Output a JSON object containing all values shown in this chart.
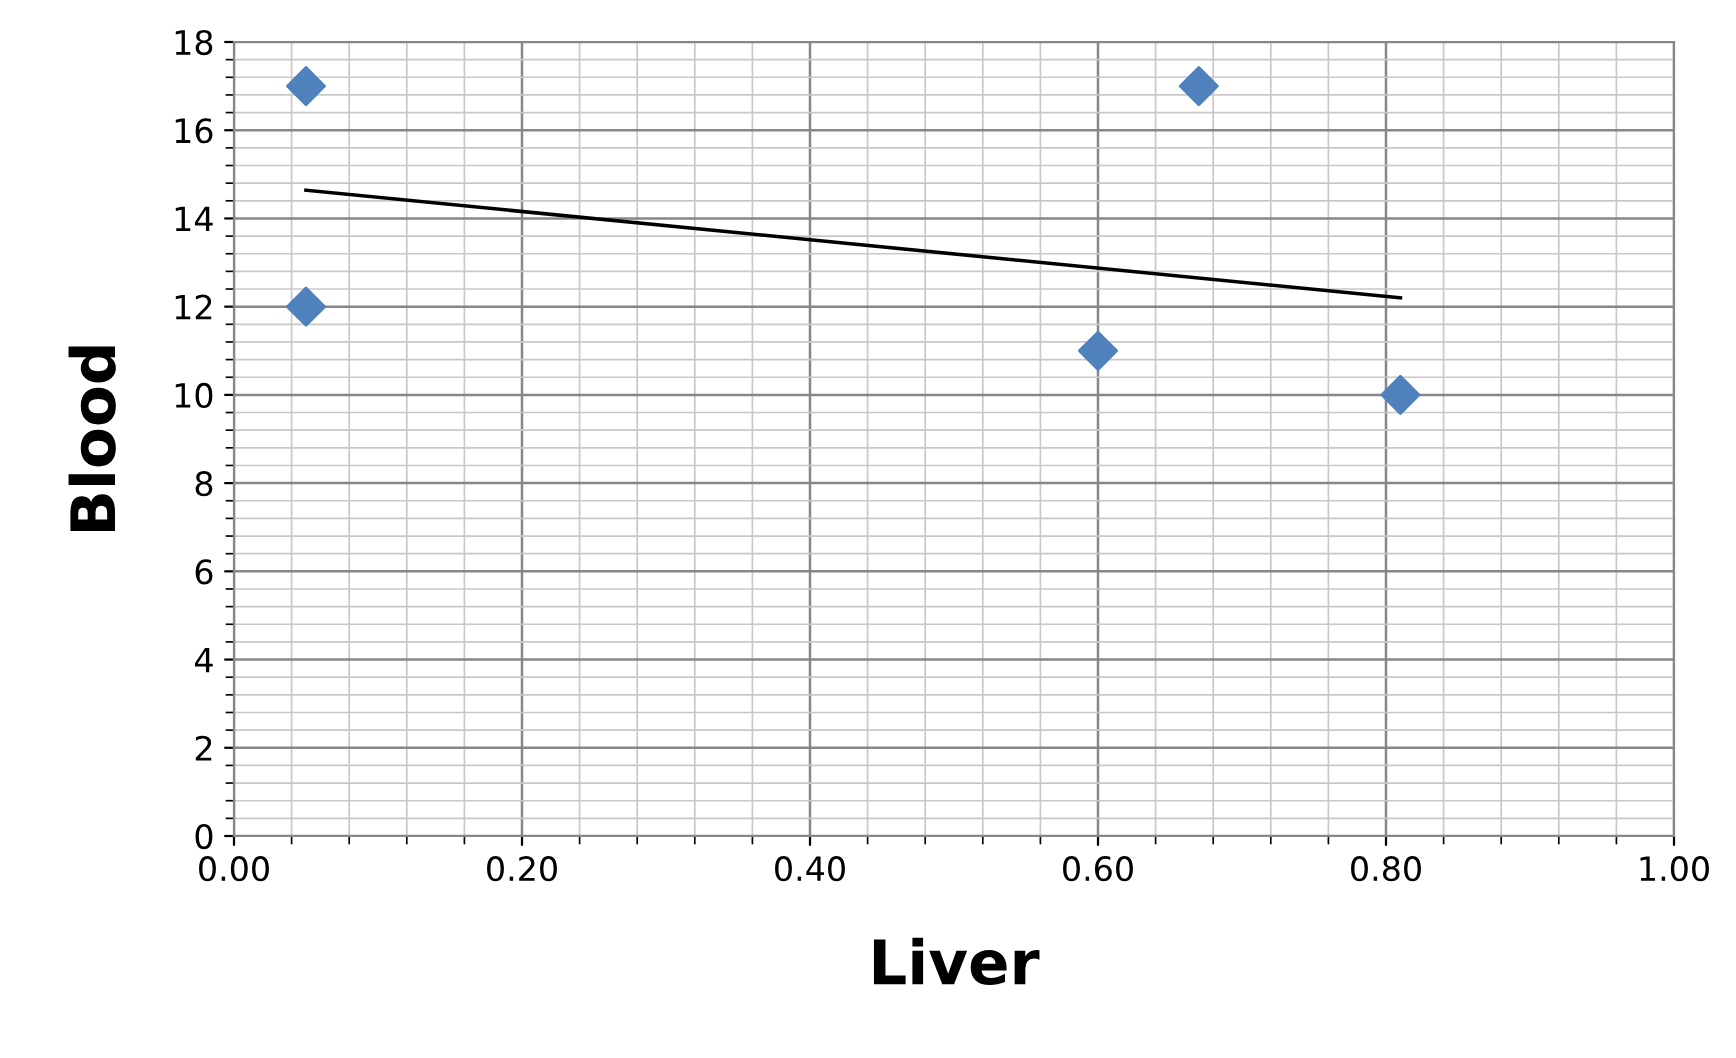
{
  "chart_data": {
    "type": "scatter",
    "xlabel": "Liver",
    "ylabel": "Blood",
    "series": [
      {
        "color": "#4f81bd",
        "marker": "diamond",
        "x": [
          0.05,
          0.05,
          0.6,
          0.67,
          0.81
        ],
        "values": [
          17,
          12,
          11,
          17,
          10
        ]
      },
      {
        "type": "line",
        "color": "#000000",
        "marker": "none",
        "line_style": "solid",
        "x": [
          0.05,
          0.81
        ],
        "values": [
          14.64,
          12.2
        ]
      }
    ],
    "xlim": [
      0,
      1
    ],
    "xticks": [
      {
        "value": 0,
        "label": "0.00"
      },
      {
        "value": 0.2,
        "label": "0.20"
      },
      {
        "value": 0.4,
        "label": "0.40"
      },
      {
        "value": 0.6,
        "label": "0.60"
      },
      {
        "value": 0.8,
        "label": "0.80"
      },
      {
        "value": 1,
        "label": "1.00"
      }
    ],
    "ylim": [
      0,
      18
    ],
    "yticks": [
      0,
      2,
      4,
      6,
      8,
      10,
      12,
      14,
      16,
      18
    ],
    "grid": true
  }
}
